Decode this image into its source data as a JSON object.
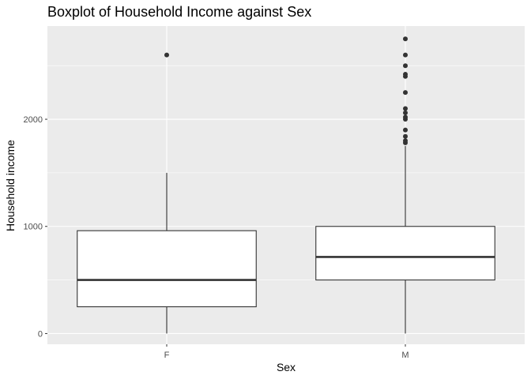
{
  "chart_data": {
    "type": "boxplot",
    "title": "Boxplot of Household Income against Sex",
    "xlabel": "Sex",
    "ylabel": "Household income",
    "categories": [
      "F",
      "M"
    ],
    "ylim": [
      -100,
      2870
    ],
    "y_ticks": [
      0,
      1000,
      2000
    ],
    "grid": true,
    "colors": {
      "panel": "#ebebeb",
      "grid": "#ffffff",
      "box_fill": "#ffffff",
      "box_line": "#333333",
      "outlier": "#333333",
      "tick_text": "#4d4d4d"
    },
    "boxes": [
      {
        "category": "F",
        "whisker_low": 0,
        "q1": 250,
        "median": 500,
        "q3": 960,
        "whisker_high": 1500,
        "outliers": [
          2600
        ]
      },
      {
        "category": "M",
        "whisker_low": 0,
        "q1": 500,
        "median": 715,
        "q3": 1000,
        "whisker_high": 1750,
        "outliers": [
          1780,
          1800,
          1840,
          1900,
          2000,
          2020,
          2060,
          2100,
          2250,
          2400,
          2420,
          2500,
          2600,
          2750
        ]
      }
    ]
  }
}
